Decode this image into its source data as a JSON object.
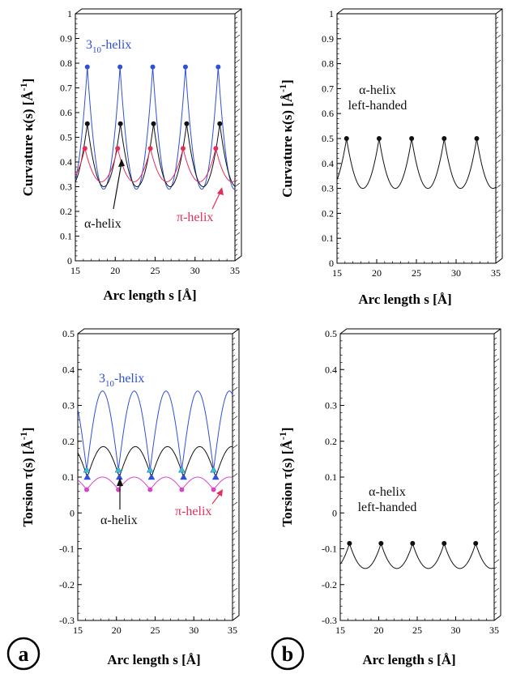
{
  "colors": {
    "blue": "#3050d8",
    "black": "#111111",
    "red": "#e0305a",
    "magenta": "#d845c8",
    "cyan": "#30c8c8"
  },
  "panel_labels": [
    "a",
    "b"
  ],
  "chart_data": [
    {
      "id": "curv-a",
      "type": "line",
      "panel": "a",
      "title": "",
      "xlabel": "Arc length s [Å]",
      "ylabel_parts": [
        "Curvature κ(s)  [Å",
        "-1",
        "]"
      ],
      "xlim": [
        15,
        35
      ],
      "ylim": [
        0,
        1
      ],
      "xticks": [
        "15",
        "20",
        "25",
        "30",
        "35"
      ],
      "yticks": [
        "0",
        "0.1",
        "0.2",
        "0.3",
        "0.4",
        "0.5",
        "0.6",
        "0.7",
        "0.8",
        "0.9",
        "1"
      ],
      "series": [
        {
          "name": "3₁₀-helix",
          "color": "#3050d8",
          "period": 4.1,
          "first_peak": 16.5,
          "peak": 0.785,
          "trough": 0.29,
          "shape": "cusp",
          "markers": "circle"
        },
        {
          "name": "α-helix",
          "color": "#111111",
          "period": 4.15,
          "first_peak": 16.5,
          "peak": 0.555,
          "trough": 0.3,
          "shape": "cusp",
          "markers": "circle"
        },
        {
          "name": "π-helix",
          "color": "#e0305a",
          "period": 4.1,
          "first_peak": 16.2,
          "peak": 0.455,
          "trough": 0.32,
          "shape": "cusp",
          "markers": "circle"
        }
      ],
      "annotations": [
        {
          "text_main": "3",
          "text_sub": "10",
          "text_rest": "-helix",
          "color": "#3050d8"
        },
        {
          "text": "α-helix",
          "color": "#111111"
        },
        {
          "text": "π-helix",
          "color": "#e0305a"
        }
      ]
    },
    {
      "id": "curv-b",
      "type": "line",
      "panel": "b",
      "title": "",
      "xlabel": "Arc length s [Å]",
      "ylabel_parts": [
        "Curvature κ(s)  [Å",
        "-1",
        "]"
      ],
      "xlim": [
        15,
        35
      ],
      "ylim": [
        0,
        1
      ],
      "xticks": [
        "15",
        "20",
        "25",
        "30",
        "35"
      ],
      "yticks": [
        "0",
        "0.1",
        "0.2",
        "0.3",
        "0.4",
        "0.5",
        "0.6",
        "0.7",
        "0.8",
        "0.9",
        "1"
      ],
      "series": [
        {
          "name": "α-helix left-handed",
          "color": "#111111",
          "period": 4.1,
          "first_peak": 16.2,
          "peak": 0.5,
          "trough": 0.3,
          "shape": "cusp",
          "markers": "circle"
        }
      ],
      "annotations": [
        {
          "text": "α-helix",
          "color": "#111111"
        },
        {
          "text": "left-handed",
          "color": "#111111"
        }
      ]
    },
    {
      "id": "tors-a",
      "type": "line",
      "panel": "a",
      "title": "",
      "xlabel": "Arc length s [Å]",
      "ylabel_parts": [
        "Torsion τ(s)  [Å",
        "-1",
        "]"
      ],
      "xlim": [
        15,
        35
      ],
      "ylim": [
        -0.3,
        0.5
      ],
      "xticks": [
        "15",
        "20",
        "25",
        "30",
        "35"
      ],
      "yticks": [
        "-0.3",
        "-0.2",
        "-0.1",
        "0",
        "0.1",
        "0.2",
        "0.3",
        "0.4",
        "0.5"
      ],
      "series": [
        {
          "name": "3₁₀-helix",
          "color": "#3050d8",
          "period": 4.1,
          "first_peak": 18.2,
          "peak": 0.34,
          "trough": 0.12,
          "shape": "arch",
          "markers": "none"
        },
        {
          "name": "α-helix",
          "color": "#111111",
          "period": 4.15,
          "first_peak": 18.3,
          "peak": 0.185,
          "trough": 0.1,
          "shape": "arch",
          "markers": "none"
        },
        {
          "name": "π-helix",
          "color": "#d845c8",
          "period": 4.1,
          "first_peak": 18.2,
          "peak": 0.1,
          "trough": 0.065,
          "shape": "arch",
          "markers": "circle-trough"
        },
        {
          "name": "α-helix markers",
          "color": "#3050d8",
          "period": 4.15,
          "first_peak": 18.3,
          "peak": 0.185,
          "trough": 0.1,
          "shape": "none",
          "markers": "triangle-trough"
        },
        {
          "name": "3₁₀-helix markers",
          "color": "#30c8c8",
          "period": 4.1,
          "first_peak": 18.2,
          "peak": 0.34,
          "trough": 0.12,
          "shape": "none",
          "markers": "triangle-trough"
        }
      ],
      "annotations": [
        {
          "text_main": "3",
          "text_sub": "10",
          "text_rest": "-helix",
          "color": "#3050d8"
        },
        {
          "text": "α-helix",
          "color": "#111111"
        },
        {
          "text": "π-helix",
          "color": "#e0305a"
        }
      ]
    },
    {
      "id": "tors-b",
      "type": "line",
      "panel": "b",
      "title": "",
      "xlabel": "Arc length s [Å]",
      "ylabel_parts": [
        "Torsion τ(s)  [Å",
        "-1",
        "]"
      ],
      "xlim": [
        15,
        35
      ],
      "ylim": [
        -0.3,
        0.5
      ],
      "xticks": [
        "15",
        "20",
        "25",
        "30",
        "35"
      ],
      "yticks": [
        "-0.3",
        "-0.2",
        "-0.1",
        "0",
        "0.1",
        "0.2",
        "0.3",
        "0.4",
        "0.5"
      ],
      "series": [
        {
          "name": "α-helix left-handed",
          "color": "#111111",
          "period": 4.1,
          "first_peak": 16.2,
          "peak": -0.085,
          "trough": -0.155,
          "shape": "cusp",
          "markers": "circle"
        }
      ],
      "annotations": [
        {
          "text": "α-helix",
          "color": "#111111"
        },
        {
          "text": "left-handed",
          "color": "#111111"
        }
      ]
    }
  ]
}
